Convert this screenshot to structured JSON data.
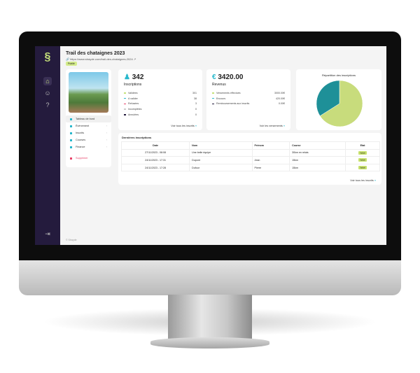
{
  "sidebar": {
    "icons": [
      "logo-icon",
      "home-icon",
      "users-icon",
      "help-icon",
      "logout-icon"
    ]
  },
  "header": {
    "title": "Trail des chataignes 2023",
    "url": "https://www.strayde.com/trail-des-chataignes-2024",
    "status": "Publié"
  },
  "menu": {
    "items": [
      {
        "label": "Tableau de bord",
        "active": true
      },
      {
        "label": "Événement"
      },
      {
        "label": "Inscrits"
      },
      {
        "label": "Courses"
      },
      {
        "label": "Finance"
      }
    ],
    "delete": "Supprimer"
  },
  "inscriptions": {
    "total": "342",
    "label": "Inscriptions",
    "rows": [
      {
        "label": "Validées",
        "value": "301",
        "color": "#c6e27a"
      },
      {
        "label": "A valider",
        "value": "38",
        "color": "#29b8cc"
      },
      {
        "label": "Refusées",
        "value": "3",
        "color": "#e8456b"
      },
      {
        "label": "Incomplètes",
        "value": "0",
        "color": "#cccccc"
      },
      {
        "label": "Annulées",
        "value": "0",
        "color": "#241b3d"
      }
    ],
    "link": "Voir tous les inscrits"
  },
  "revenus": {
    "total": "3420.00",
    "label": "Revenus",
    "rows": [
      {
        "label": "Versements effectués",
        "value": "3000.00€",
        "color": "#c6e27a"
      },
      {
        "label": "Encours",
        "value": "420.00€",
        "color": "#29b8cc"
      },
      {
        "label": "Remboursements aux inscrits",
        "value": "0.00€",
        "color": "#241b3d"
      }
    ],
    "link": "Voir les versements"
  },
  "chart_data": {
    "type": "pie",
    "title": "Répartition des inscriptions",
    "values": [
      66,
      34
    ],
    "colors": [
      "#c8dc7c",
      "#1e9098"
    ]
  },
  "recent": {
    "title": "Dernières inscriptions",
    "columns": [
      "Date",
      "Nom",
      "Prénom",
      "Course",
      "Etat"
    ],
    "rows": [
      [
        "27/11/2023 - 08:08",
        "Une belle équipe",
        "",
        "30km en relais",
        "Validé"
      ],
      [
        "24/11/2023 - 17:31",
        "Dupont",
        "Jean",
        "15km",
        "Validé"
      ],
      [
        "24/11/2023 - 17:28",
        "Dufour",
        "Pierre",
        "15km",
        "Validé"
      ]
    ],
    "link": "Voir tous les inscrits"
  },
  "footer": "© Strayde"
}
